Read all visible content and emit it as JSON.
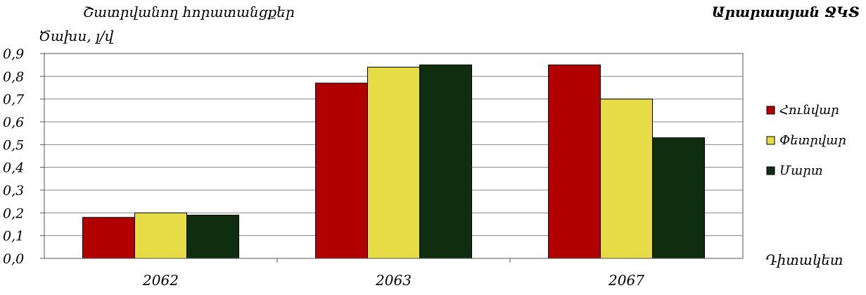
{
  "chart_data": {
    "type": "bar",
    "title_left_line1": "Շատրվանող հորատանցքեր",
    "title_left_line2": "Ծախս, լ/վ",
    "title_right": "Արարատյան ՋԿՏ",
    "xlabel": "Դիտակետ",
    "categories": [
      "2062",
      "2063",
      "2067"
    ],
    "ylim": [
      0,
      0.9
    ],
    "yticks": [
      "0,0",
      "0,1",
      "0,2",
      "0,3",
      "0,4",
      "0,5",
      "0,6",
      "0,7",
      "0,8",
      "0,9"
    ],
    "grid": true,
    "legend_position": "right",
    "series": [
      {
        "name": "Հունվար",
        "color": "#b00000",
        "values": [
          0.18,
          0.77,
          0.85
        ]
      },
      {
        "name": "Փետրվար",
        "color": "#e6dc46",
        "values": [
          0.2,
          0.84,
          0.7
        ]
      },
      {
        "name": "Մարտ",
        "color": "#0f2e0f",
        "values": [
          0.19,
          0.85,
          0.53
        ]
      }
    ]
  }
}
